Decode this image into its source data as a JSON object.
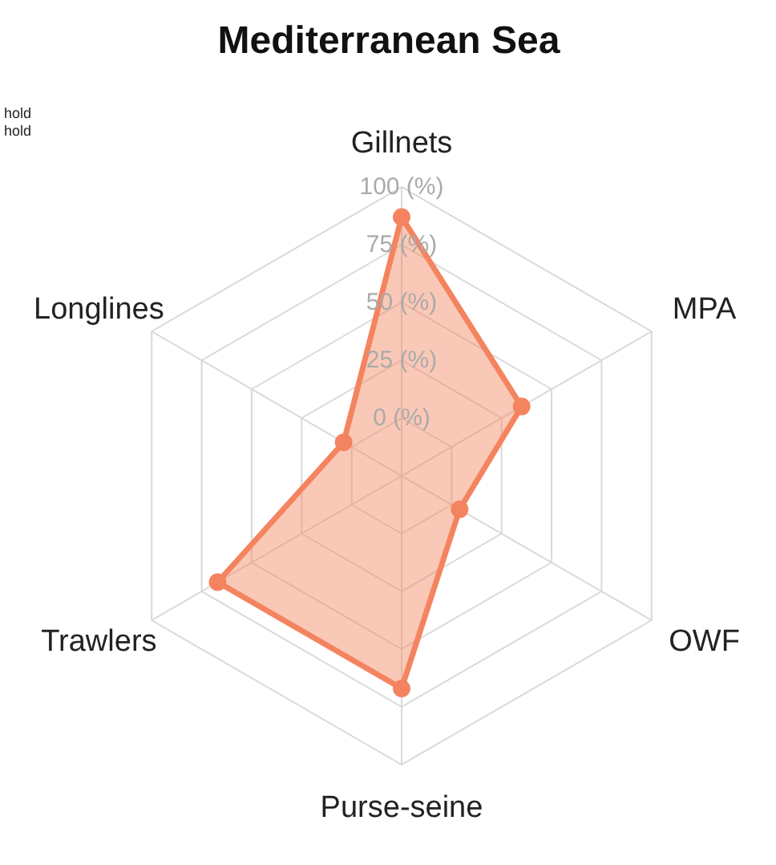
{
  "chart_data": {
    "type": "radar",
    "title": "Mediterranean Sea",
    "categories": [
      "Gillnets",
      "MPA",
      "OWF",
      "Purse-seine",
      "Trawlers",
      "Longlines"
    ],
    "series": [
      {
        "color": "#f4845f",
        "values": [
          87,
          35,
          4,
          67,
          67,
          4
        ]
      }
    ],
    "ylim": [
      -25,
      100
    ],
    "yticks": [
      {
        "value": 0,
        "label": "0 (%)"
      },
      {
        "value": 25,
        "label": "25 (%)"
      },
      {
        "value": 50,
        "label": "50 (%)"
      },
      {
        "value": 75,
        "label": "75 (%)"
      },
      {
        "value": 100,
        "label": "100 (%)"
      }
    ],
    "annotations": [
      "hold",
      "hold"
    ],
    "marker": "circle",
    "grid": true
  }
}
